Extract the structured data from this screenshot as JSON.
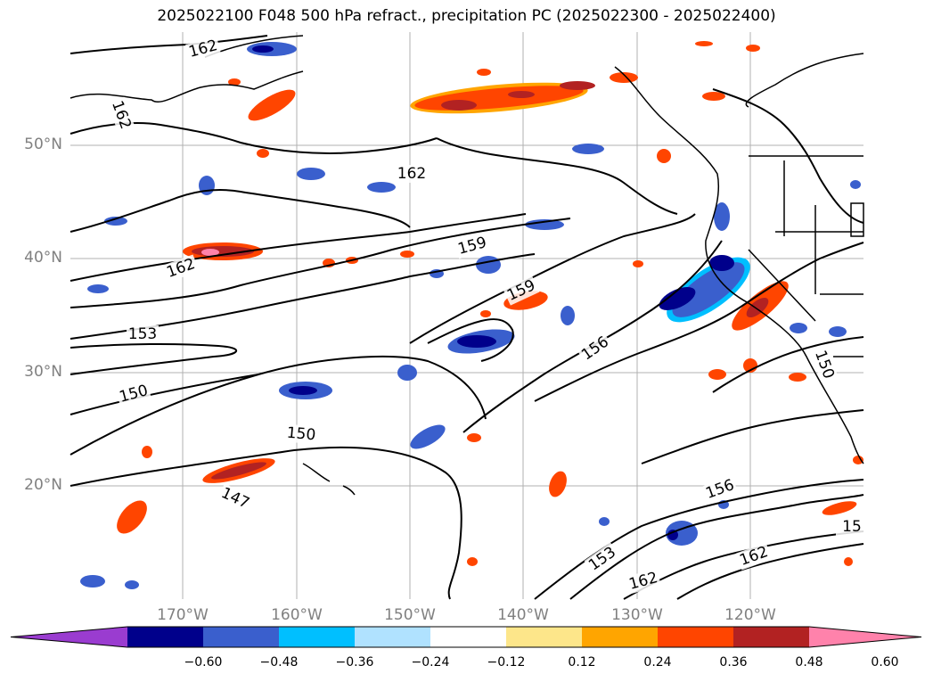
{
  "title": "2025022100 F048 500 hPa refract., precipitation PC (2025022300 - 2025022400)",
  "lat_labels": [
    "50°N",
    "40°N",
    "30°N",
    "20°N"
  ],
  "lon_labels": [
    "170°W",
    "160°W",
    "150°W",
    "140°W",
    "130°W",
    "120°W"
  ],
  "colorbar": {
    "colors": [
      "#9a3cd0",
      "#00008b",
      "#3a5fcd",
      "#00bfff",
      "#b0e2ff",
      "#ffffff",
      "#fde68a",
      "#ffa500",
      "#ff4500",
      "#b22222",
      "#ff82ab"
    ],
    "tick_labels": [
      "−0.60",
      "−0.48",
      "−0.36",
      "−0.24",
      "−0.12",
      "0.12",
      "0.24",
      "0.36",
      "0.48",
      "0.60"
    ]
  },
  "contour_labels": [
    "162",
    "162",
    "162",
    "162",
    "159",
    "159",
    "153",
    "156",
    "150",
    "150",
    "147",
    "156",
    "153",
    "162",
    "162",
    "15",
    "150"
  ]
}
